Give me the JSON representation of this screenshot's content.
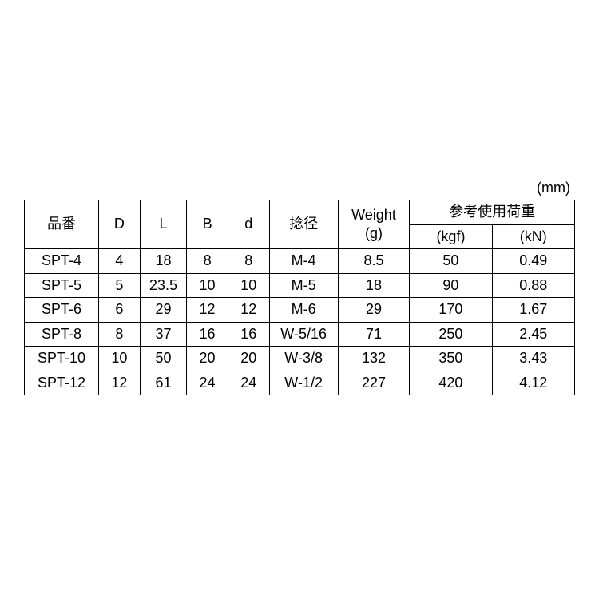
{
  "type": "table",
  "unit_label": "(mm)",
  "background_color": "#ffffff",
  "border_color": "#000000",
  "text_color": "#000000",
  "font_size_pt": 14,
  "header": {
    "part_no": "品番",
    "D": "D",
    "L": "L",
    "B": "B",
    "d": "d",
    "thread_dia": "捻径",
    "weight_top": "Weight",
    "weight_bottom": "(g)",
    "ref_load": "参考使用荷重",
    "kgf": "(kgf)",
    "kN": "(kN)"
  },
  "columns": [
    "品番",
    "D",
    "L",
    "B",
    "d",
    "捻径",
    "Weight (g)",
    "参考使用荷重 (kgf)",
    "参考使用荷重 (kN)"
  ],
  "column_widths_pct": [
    13.5,
    7.5,
    8.5,
    7.5,
    7.5,
    12.5,
    13,
    15,
    15
  ],
  "rows": [
    {
      "part": "SPT-4",
      "D": "4",
      "L": "18",
      "B": "8",
      "d": "8",
      "thread": "M-4",
      "weight": "8.5",
      "kgf": "50",
      "kN": "0.49"
    },
    {
      "part": "SPT-5",
      "D": "5",
      "L": "23.5",
      "B": "10",
      "d": "10",
      "thread": "M-5",
      "weight": "18",
      "kgf": "90",
      "kN": "0.88"
    },
    {
      "part": "SPT-6",
      "D": "6",
      "L": "29",
      "B": "12",
      "d": "12",
      "thread": "M-6",
      "weight": "29",
      "kgf": "170",
      "kN": "1.67"
    },
    {
      "part": "SPT-8",
      "D": "8",
      "L": "37",
      "B": "16",
      "d": "16",
      "thread": "W-5/16",
      "weight": "71",
      "kgf": "250",
      "kN": "2.45"
    },
    {
      "part": "SPT-10",
      "D": "10",
      "L": "50",
      "B": "20",
      "d": "20",
      "thread": "W-3/8",
      "weight": "132",
      "kgf": "350",
      "kN": "3.43"
    },
    {
      "part": "SPT-12",
      "D": "12",
      "L": "61",
      "B": "24",
      "d": "24",
      "thread": "W-1/2",
      "weight": "227",
      "kgf": "420",
      "kN": "4.12"
    }
  ]
}
